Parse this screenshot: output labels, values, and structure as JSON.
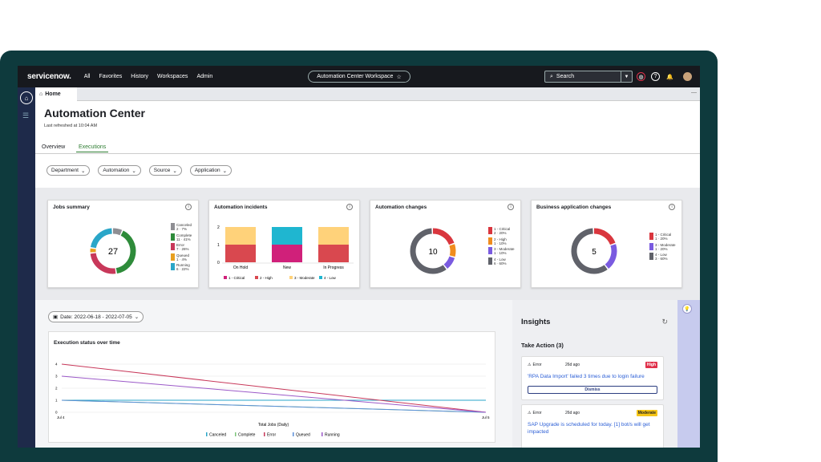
{
  "topnav": {
    "logo": "servicenow.",
    "links": [
      "All",
      "Favorites",
      "History",
      "Workspaces",
      "Admin"
    ],
    "workspace_title": "Automation Center Workspace",
    "search_placeholder": "Search"
  },
  "tabbar": {
    "home_tab": "Home"
  },
  "page": {
    "title": "Automation Center",
    "last_refreshed": "Last refreshed at 10:04 AM",
    "tabs": [
      "Overview",
      "Executions"
    ],
    "active_tab": "Executions",
    "filters": [
      "Department",
      "Automation",
      "Source",
      "Application"
    ]
  },
  "cards": {
    "jobs": {
      "title": "Jobs summary",
      "total": "27",
      "legend": [
        {
          "label": "Canceled",
          "value": "2 · 7%",
          "color": "#8e8e93"
        },
        {
          "label": "Complete",
          "value": "11 · 41%",
          "color": "#2e8b3a"
        },
        {
          "label": "Error",
          "value": "7 · 26%",
          "color": "#c8385a"
        },
        {
          "label": "Queued",
          "value": "1 · 4%",
          "color": "#e8a020"
        },
        {
          "label": "Running",
          "value": "6 · 22%",
          "color": "#2aa6c8"
        }
      ]
    },
    "incidents": {
      "title": "Automation incidents",
      "categories": [
        "On Hold",
        "New",
        "In Progress"
      ],
      "yticks": [
        "2",
        "1",
        "0"
      ],
      "legend": [
        "1 - Critical",
        "2 - High",
        "3 - Moderate",
        "4 - Low"
      ],
      "legend_colors": [
        "#d0207a",
        "#d9484f",
        "#ffd27a",
        "#1fb6d0"
      ]
    },
    "changes": {
      "title": "Automation changes",
      "total": "10",
      "legend": [
        {
          "label": "1 - Critical",
          "value": "2 · 20%",
          "color": "#d9363e"
        },
        {
          "label": "2 - High",
          "value": "1 · 10%",
          "color": "#f08c1e"
        },
        {
          "label": "3 - Moderate",
          "value": "1 · 10%",
          "color": "#7a5be0"
        },
        {
          "label": "4 - Low",
          "value": "6 · 60%",
          "color": "#60626a"
        }
      ]
    },
    "business": {
      "title": "Business application changes",
      "total": "5",
      "legend": [
        {
          "label": "1 - Critical",
          "value": "1 · 20%",
          "color": "#d9363e"
        },
        {
          "label": "3 - Moderate",
          "value": "1 · 20%",
          "color": "#7a5be0"
        },
        {
          "label": "4 - Low",
          "value": "3 · 60%",
          "color": "#60626a"
        }
      ]
    }
  },
  "date_filter": "Date: 2022-06-18 - 2022-07-05",
  "chart_data": {
    "type": "line",
    "title": "Execution status over time",
    "xlabel": "Total Jobs (Daily)",
    "ylabel": "",
    "x": [
      "Jul 4",
      "Jul 5"
    ],
    "ylim": [
      0,
      4
    ],
    "yticks": [
      0,
      1,
      2,
      3,
      4
    ],
    "series": [
      {
        "name": "Canceled",
        "color": "#2aa6c8",
        "values": [
          1,
          1
        ]
      },
      {
        "name": "Complete",
        "color": "#7cc47a",
        "values": [
          1,
          0
        ]
      },
      {
        "name": "Error",
        "color": "#c8385a",
        "values": [
          4,
          0
        ]
      },
      {
        "name": "Queued",
        "color": "#5b8fd9",
        "values": [
          1,
          0
        ]
      },
      {
        "name": "Running",
        "color": "#9b59c8",
        "values": [
          3,
          0
        ]
      }
    ]
  },
  "insights": {
    "title": "Insights",
    "take_action": "Take Action (3)",
    "items": [
      {
        "type": "Error",
        "ago": "26d ago",
        "severity": "High",
        "message": "'RPA Data Import' failed 3 times due to login failure",
        "action": "Dismiss"
      },
      {
        "type": "Error",
        "ago": "26d ago",
        "severity": "Moderate",
        "message": "SAP Upgrade is scheduled for today. [1] bot/s will get impacted"
      }
    ]
  }
}
